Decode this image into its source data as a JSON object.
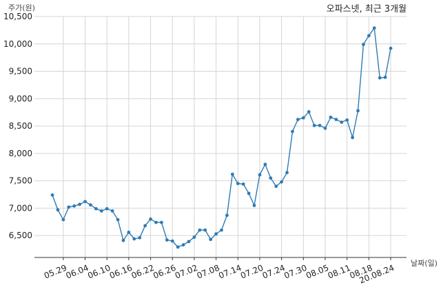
{
  "chart_data": {
    "type": "line",
    "title": "오파스넷, 최근 3개월",
    "xlabel": "날짜(일)",
    "ylabel": "주가(원)",
    "ylim": [
      6100,
      10500
    ],
    "yticks": [
      6500,
      7000,
      7500,
      8000,
      8500,
      9000,
      9500,
      10000,
      10500
    ],
    "ytick_labels": [
      "6,500",
      "7,000",
      "7,500",
      "8,000",
      "8,500",
      "9,000",
      "9,500",
      "10,000",
      "10,500"
    ],
    "xtick_labels": [
      "05.29",
      "06.04",
      "06.10",
      "06.16",
      "06.22",
      "06.26",
      "07.02",
      "07.08",
      "07.14",
      "07.20",
      "07.24",
      "07.30",
      "08.05",
      "08.11",
      "08.18",
      "20.08.24"
    ],
    "xtick_indices": [
      2,
      6,
      10,
      14,
      18,
      22,
      26,
      30,
      34,
      38,
      42,
      46,
      50,
      54,
      58,
      62
    ],
    "grid": true,
    "line_color": "#2e7bb4",
    "series": [
      {
        "values": [
          7240,
          6970,
          6790,
          7020,
          7040,
          7070,
          7120,
          7060,
          6990,
          6950,
          6990,
          6950,
          6790,
          6410,
          6560,
          6440,
          6460,
          6680,
          6800,
          6740,
          6740,
          6420,
          6400,
          6290,
          6330,
          6390,
          6470,
          6600,
          6600,
          6430,
          6530,
          6600,
          6870,
          7620,
          7450,
          7440,
          7270,
          7050,
          7610,
          7800,
          7550,
          7400,
          7480,
          7650,
          8400,
          8620,
          8650,
          8760,
          8510,
          8510,
          8460,
          8660,
          8620,
          8570,
          8610,
          8290,
          8780,
          9990,
          10150,
          10290,
          9380,
          9390,
          9920
        ]
      }
    ]
  }
}
